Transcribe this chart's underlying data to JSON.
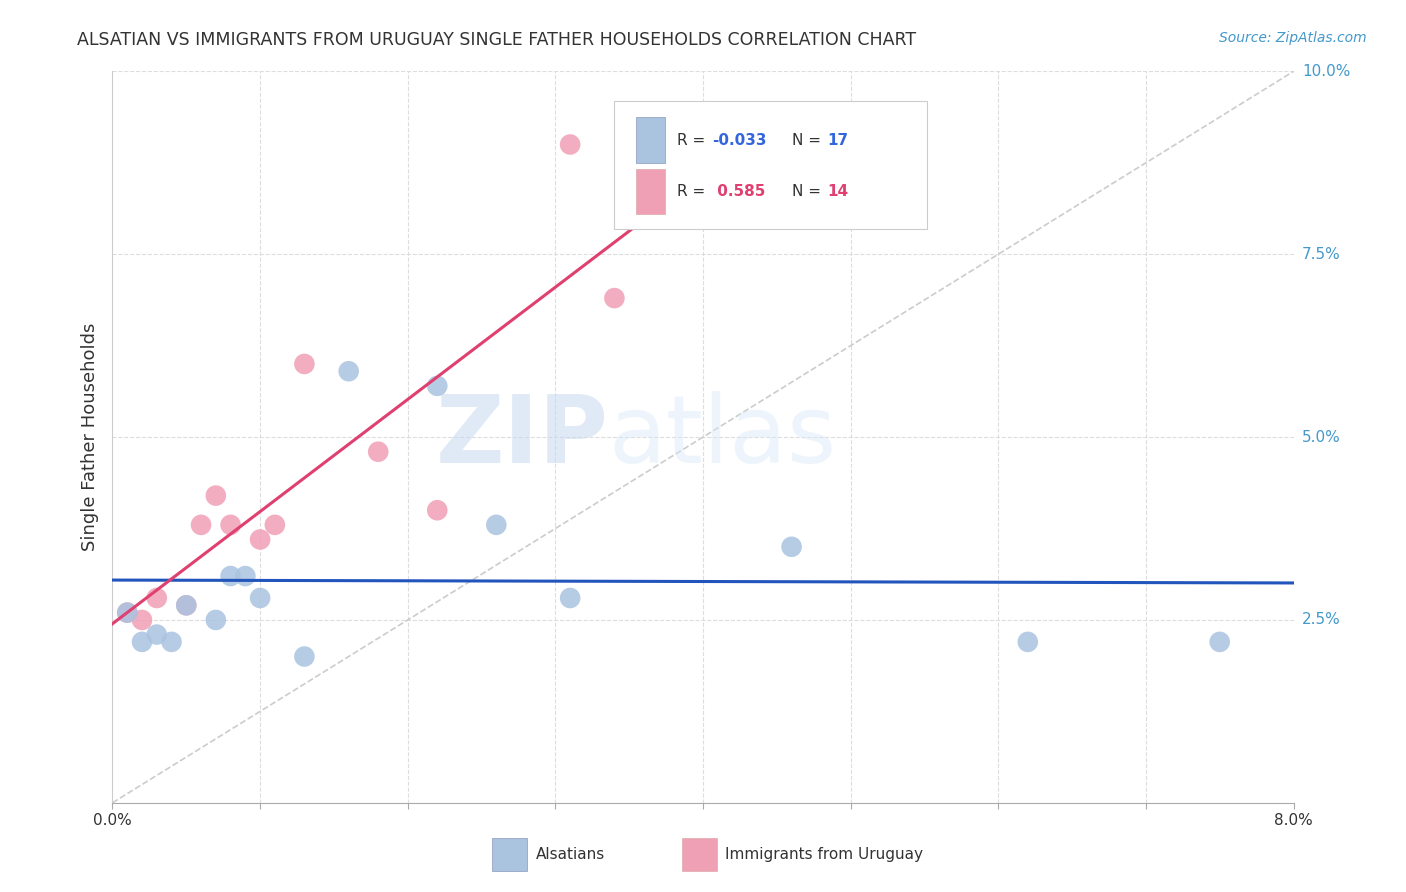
{
  "title": "ALSATIAN VS IMMIGRANTS FROM URUGUAY SINGLE FATHER HOUSEHOLDS CORRELATION CHART",
  "source": "Source: ZipAtlas.com",
  "ylabel": "Single Father Households",
  "watermark_zip": "ZIP",
  "watermark_atlas": "atlas",
  "alsatians_x": [
    0.001,
    0.002,
    0.003,
    0.004,
    0.005,
    0.007,
    0.008,
    0.009,
    0.01,
    0.013,
    0.016,
    0.022,
    0.026,
    0.031,
    0.046,
    0.062,
    0.075
  ],
  "alsatians_y": [
    0.026,
    0.022,
    0.023,
    0.022,
    0.027,
    0.025,
    0.031,
    0.031,
    0.028,
    0.02,
    0.059,
    0.057,
    0.038,
    0.028,
    0.035,
    0.022,
    0.022
  ],
  "uruguay_x": [
    0.001,
    0.002,
    0.003,
    0.005,
    0.006,
    0.007,
    0.008,
    0.01,
    0.011,
    0.013,
    0.018,
    0.022,
    0.031,
    0.034
  ],
  "uruguay_y": [
    0.026,
    0.025,
    0.028,
    0.027,
    0.038,
    0.042,
    0.038,
    0.036,
    0.038,
    0.06,
    0.048,
    0.04,
    0.09,
    0.069
  ],
  "blue_color": "#aac4e0",
  "pink_color": "#f0a0b5",
  "blue_line_color": "#2255bb",
  "pink_line_color": "#e04070",
  "diagonal_color": "#cccccc",
  "background_color": "#ffffff",
  "grid_color": "#dddddd",
  "xmin": 0.0,
  "xmax": 0.08,
  "ymin": 0.0,
  "ymax": 0.1
}
